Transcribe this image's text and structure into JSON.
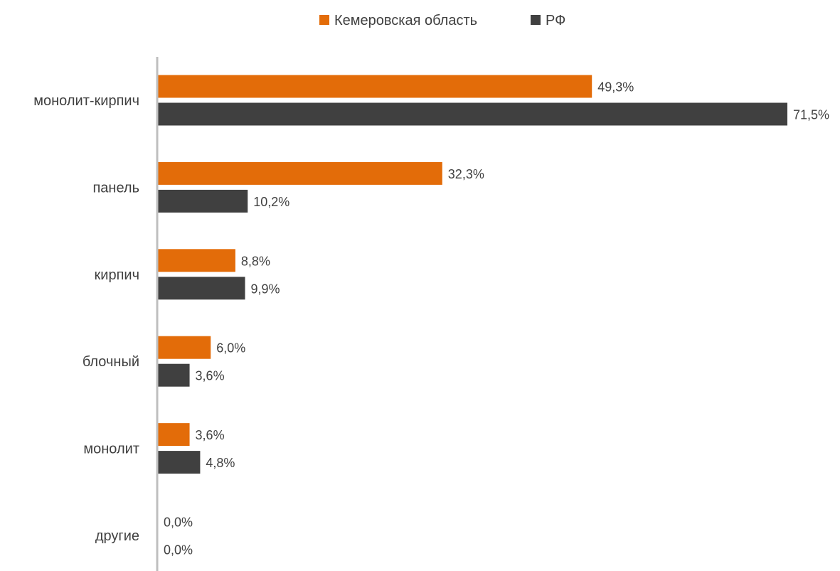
{
  "chart_data": {
    "type": "bar",
    "orientation": "horizontal",
    "categories": [
      "монолит-кирпич",
      "панель",
      "кирпич",
      "блочный",
      "монолит",
      "другие"
    ],
    "series": [
      {
        "name": "Кемеровская область",
        "color": "#e36c09",
        "values": [
          49.3,
          32.3,
          8.8,
          6.0,
          3.6,
          0.0
        ],
        "labels": [
          "49,3%",
          "32,3%",
          "8,8%",
          "6,0%",
          "3,6%",
          "0,0%"
        ]
      },
      {
        "name": "РФ",
        "color": "#404040",
        "values": [
          71.5,
          10.2,
          9.9,
          3.6,
          4.8,
          0.0
        ],
        "labels": [
          "71,5%",
          "10,2%",
          "9,9%",
          "3,6%",
          "4,8%",
          "0,0%"
        ]
      }
    ],
    "xlim": [
      0,
      71.5
    ],
    "legend_position": "top-center",
    "grid": false,
    "axis_color": "#bfbfbf"
  }
}
